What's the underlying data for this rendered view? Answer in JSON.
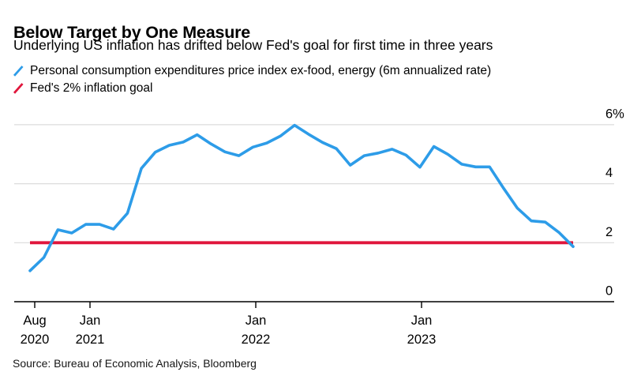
{
  "header": {
    "title": "Below Target by One Measure",
    "subtitle": "Underlying US inflation has drifted below Fed's goal for first time in three years"
  },
  "legend": {
    "items": [
      {
        "label": "Personal consumption expenditures price index ex-food, energy (6m annualized rate)",
        "color": "#2d9ce8"
      },
      {
        "label": "Fed's 2% inflation goal",
        "color": "#e0163c"
      }
    ]
  },
  "footer": {
    "source": "Source: Bureau of Economic Analysis, Bloomberg"
  },
  "chart_data": {
    "type": "line",
    "title": "Below Target by One Measure",
    "xlabel": "",
    "ylabel": "",
    "ylim": [
      0,
      6
    ],
    "grid": "horizontal",
    "legend_position": "top-left",
    "x": [
      "2020-08",
      "2020-09",
      "2020-10",
      "2020-11",
      "2020-12",
      "2021-01",
      "2021-02",
      "2021-03",
      "2021-04",
      "2021-05",
      "2021-06",
      "2021-07",
      "2021-08",
      "2021-09",
      "2021-10",
      "2021-11",
      "2021-12",
      "2022-01",
      "2022-02",
      "2022-03",
      "2022-04",
      "2022-05",
      "2022-06",
      "2022-07",
      "2022-08",
      "2022-09",
      "2022-10",
      "2022-11",
      "2022-12",
      "2023-01",
      "2023-02",
      "2023-03",
      "2023-04",
      "2023-05",
      "2023-06",
      "2023-07",
      "2023-08",
      "2023-09",
      "2023-10",
      "2023-11"
    ],
    "series": [
      {
        "name": "Personal consumption expenditures price index ex-food, energy (6m annualized rate)",
        "color": "#2d9ce8",
        "values": [
          1.05,
          1.5,
          2.44,
          2.33,
          2.62,
          2.62,
          2.46,
          3.0,
          4.52,
          5.07,
          5.3,
          5.41,
          5.66,
          5.35,
          5.08,
          4.95,
          5.24,
          5.38,
          5.62,
          5.98,
          5.68,
          5.4,
          5.19,
          4.63,
          4.95,
          5.04,
          5.17,
          4.97,
          4.56,
          5.26,
          5.0,
          4.66,
          4.57,
          4.57,
          3.85,
          3.17,
          2.74,
          2.7,
          2.34,
          1.87
        ]
      },
      {
        "name": "Fed's 2% inflation goal",
        "color": "#e0163c",
        "constant": 2
      }
    ],
    "yticks": [
      {
        "value": 6,
        "label": "6%"
      },
      {
        "value": 4,
        "label": "4"
      },
      {
        "value": 2,
        "label": "2"
      },
      {
        "value": 0,
        "label": "0"
      }
    ],
    "xticks": [
      {
        "month": "Aug",
        "year": "2020",
        "x_index": 0
      },
      {
        "month": "Jan",
        "year": "2021",
        "x_index": 5
      },
      {
        "month": "Jan",
        "year": "2022",
        "x_index": 17
      },
      {
        "month": "Jan",
        "year": "2023",
        "x_index": 29
      }
    ]
  }
}
